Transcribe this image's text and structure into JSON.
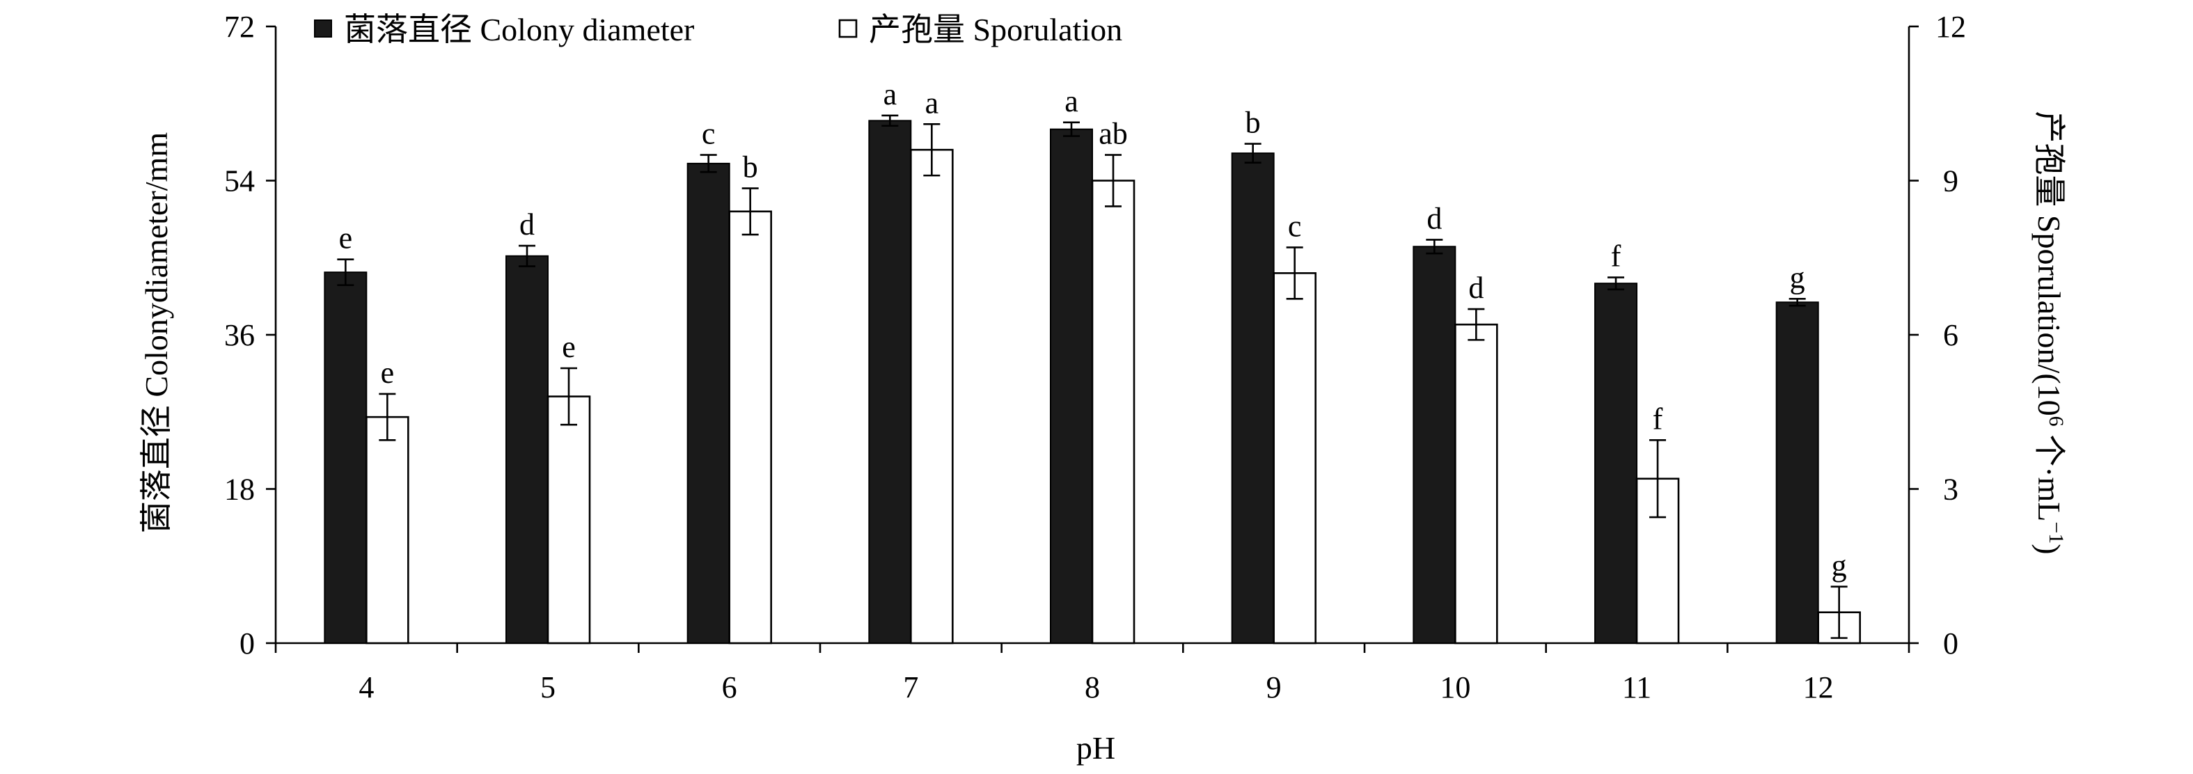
{
  "chart_data": {
    "type": "bar",
    "xlabel": "pH",
    "ylabel_left": "菌落直径 Colonydiameter/mm",
    "ylabel_right_main": "产孢量 Sporulation/(10",
    "ylabel_right_sup": "6",
    "ylabel_right_unit": " 个·mL",
    "ylabel_right_unit_sup": "−1",
    "ylabel_right_close": ")",
    "categories": [
      "4",
      "5",
      "6",
      "7",
      "8",
      "9",
      "10",
      "11",
      "12"
    ],
    "ylim_left": [
      0,
      72
    ],
    "yticks_left": [
      0,
      18,
      36,
      54,
      72
    ],
    "ylim_right": [
      0,
      12
    ],
    "yticks_right": [
      0,
      3,
      6,
      9,
      12
    ],
    "legend_position": "top-left",
    "series": [
      {
        "name": "菌落直径 Colony diameter",
        "axis": "left",
        "color": "#1a1a1a",
        "values": [
          43.3,
          45.2,
          56.0,
          61.0,
          60.0,
          57.2,
          46.3,
          42.0,
          39.8
        ],
        "errors": [
          1.5,
          1.2,
          1.0,
          0.6,
          0.8,
          1.1,
          0.8,
          0.7,
          0.4
        ],
        "labels": [
          "e",
          "d",
          "c",
          "a",
          "a",
          "b",
          "d",
          "f",
          "g"
        ]
      },
      {
        "name": "产孢量 Sporulation",
        "axis": "right",
        "color": "#ffffff",
        "values": [
          4.4,
          4.8,
          8.4,
          9.6,
          9.0,
          7.2,
          6.2,
          3.2,
          0.6
        ],
        "errors": [
          0.45,
          0.55,
          0.45,
          0.5,
          0.5,
          0.5,
          0.3,
          0.75,
          0.5
        ],
        "labels": [
          "e",
          "e",
          "b",
          "a",
          "ab",
          "c",
          "d",
          "f",
          "g"
        ]
      }
    ]
  }
}
